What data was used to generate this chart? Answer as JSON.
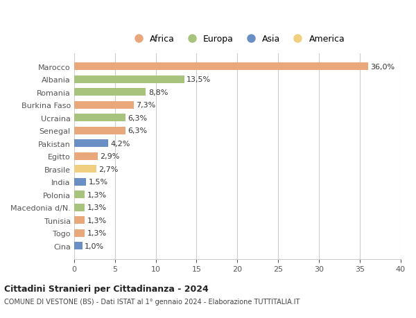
{
  "categories": [
    "Cina",
    "Togo",
    "Tunisia",
    "Macedonia d/N.",
    "Polonia",
    "India",
    "Brasile",
    "Egitto",
    "Pakistan",
    "Senegal",
    "Ucraina",
    "Burkina Faso",
    "Romania",
    "Albania",
    "Marocco"
  ],
  "values": [
    1.0,
    1.3,
    1.3,
    1.3,
    1.3,
    1.5,
    2.7,
    2.9,
    4.2,
    6.3,
    6.3,
    7.3,
    8.8,
    13.5,
    36.0
  ],
  "labels": [
    "1,0%",
    "1,3%",
    "1,3%",
    "1,3%",
    "1,3%",
    "1,5%",
    "2,7%",
    "2,9%",
    "4,2%",
    "6,3%",
    "6,3%",
    "7,3%",
    "8,8%",
    "13,5%",
    "36,0%"
  ],
  "colors": [
    "#6a8fc4",
    "#e8a87c",
    "#e8a87c",
    "#a8c47c",
    "#a8c47c",
    "#6a8fc4",
    "#f0d080",
    "#e8a87c",
    "#6a8fc4",
    "#e8a87c",
    "#a8c47c",
    "#e8a87c",
    "#a8c47c",
    "#a8c47c",
    "#e8a87c"
  ],
  "legend_labels": [
    "Africa",
    "Europa",
    "Asia",
    "America"
  ],
  "legend_colors": [
    "#e8a87c",
    "#a8c47c",
    "#6a8fc4",
    "#f0d080"
  ],
  "title": "Cittadini Stranieri per Cittadinanza - 2024",
  "subtitle": "COMUNE DI VESTONE (BS) - Dati ISTAT al 1° gennaio 2024 - Elaborazione TUTTITALIA.IT",
  "xlim": [
    0,
    40
  ],
  "xticks": [
    0,
    5,
    10,
    15,
    20,
    25,
    30,
    35,
    40
  ],
  "background_color": "#ffffff",
  "grid_color": "#cccccc"
}
